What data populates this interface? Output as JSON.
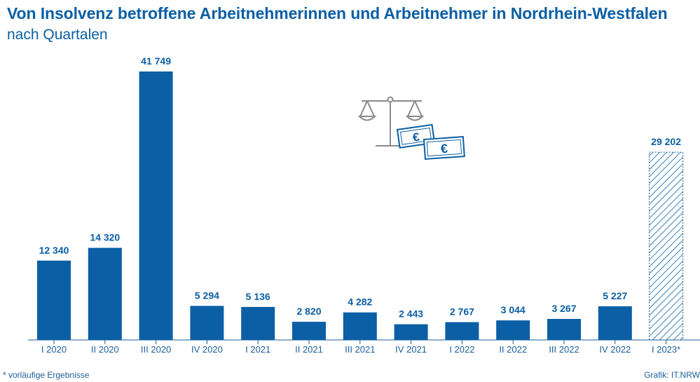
{
  "title": "Von Insolvenz betroffene Arbeitnehmerinnen und Arbeitnehmer in Nordrhein-Westfalen",
  "subtitle": "nach Quartalen",
  "footnote": "* vorläufige Ergebnisse",
  "source": "Grafik: IT.NRW",
  "icon": "scales-with-euro-banknotes-icon",
  "colors": {
    "bar": "#0b5fa5",
    "text": "#0b5fa5",
    "axis": "#1a5f9a"
  },
  "chart_data": {
    "type": "bar",
    "categories": [
      "I 2020",
      "II 2020",
      "III 2020",
      "IV 2020",
      "I 2021",
      "II 2021",
      "III 2021",
      "IV 2021",
      "I 2022",
      "II 2022",
      "III 2022",
      "IV 2022",
      "I 2023*"
    ],
    "values": [
      12340,
      14320,
      41749,
      5294,
      5136,
      2820,
      4282,
      2443,
      2767,
      3044,
      3267,
      5227,
      29202
    ],
    "value_labels": [
      "12 340",
      "14 320",
      "41 749",
      "5 294",
      "5 136",
      "2 820",
      "4 282",
      "2 443",
      "2 767",
      "3 044",
      "3 267",
      "5 227",
      "29 202"
    ],
    "preliminary": [
      false,
      false,
      false,
      false,
      false,
      false,
      false,
      false,
      false,
      false,
      false,
      false,
      true
    ],
    "ylim": [
      0,
      41749
    ],
    "grid": false
  }
}
